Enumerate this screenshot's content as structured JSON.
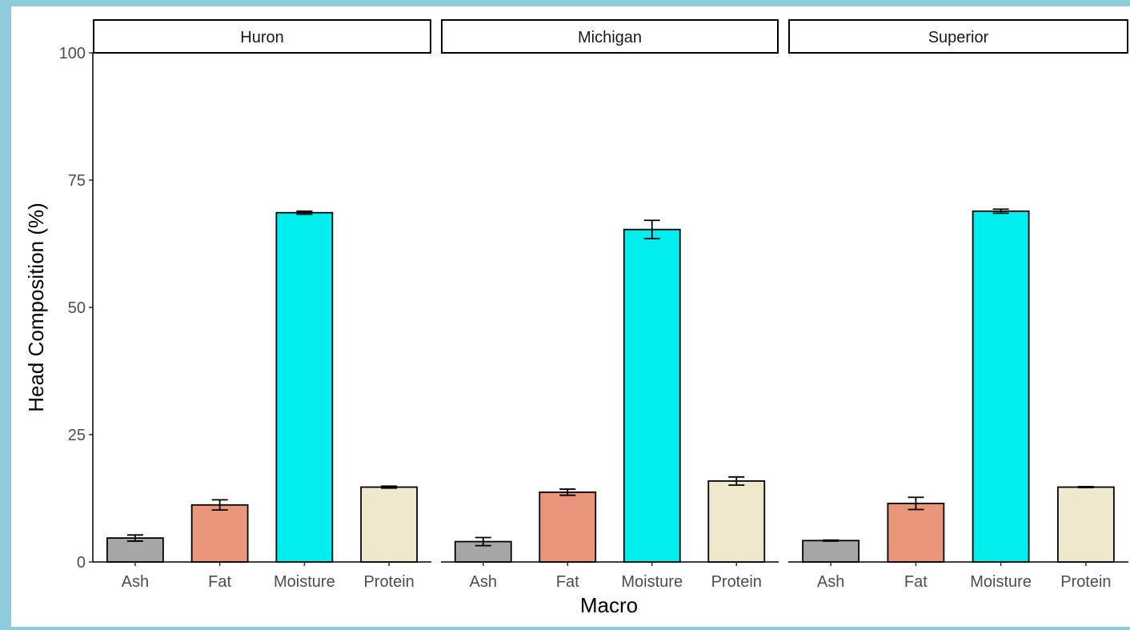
{
  "chart_data": {
    "type": "bar",
    "facets": [
      "Huron",
      "Michigan",
      "Superior"
    ],
    "categories": [
      "Ash",
      "Fat",
      "Moisture",
      "Protein"
    ],
    "colors": {
      "Ash": "#a6a6a6",
      "Fat": "#e9967a",
      "Moisture": "#00eeee",
      "Protein": "#eee8cd"
    },
    "values": {
      "Huron": [
        4.7,
        11.2,
        68.6,
        14.7
      ],
      "Michigan": [
        4.0,
        13.7,
        65.3,
        15.9
      ],
      "Superior": [
        4.2,
        11.5,
        68.9,
        14.7
      ]
    },
    "errors": {
      "Huron": [
        0.6,
        1.0,
        0.3,
        0.2
      ],
      "Michigan": [
        0.8,
        0.6,
        1.8,
        0.8
      ],
      "Superior": [
        0.1,
        1.2,
        0.4,
        0.1
      ]
    },
    "xlabel": "Macro",
    "ylabel": "Head Composition (%)",
    "ylim": [
      0,
      100
    ],
    "yticks": [
      0,
      25,
      50,
      75,
      100
    ],
    "grid": false,
    "legend": "none"
  }
}
